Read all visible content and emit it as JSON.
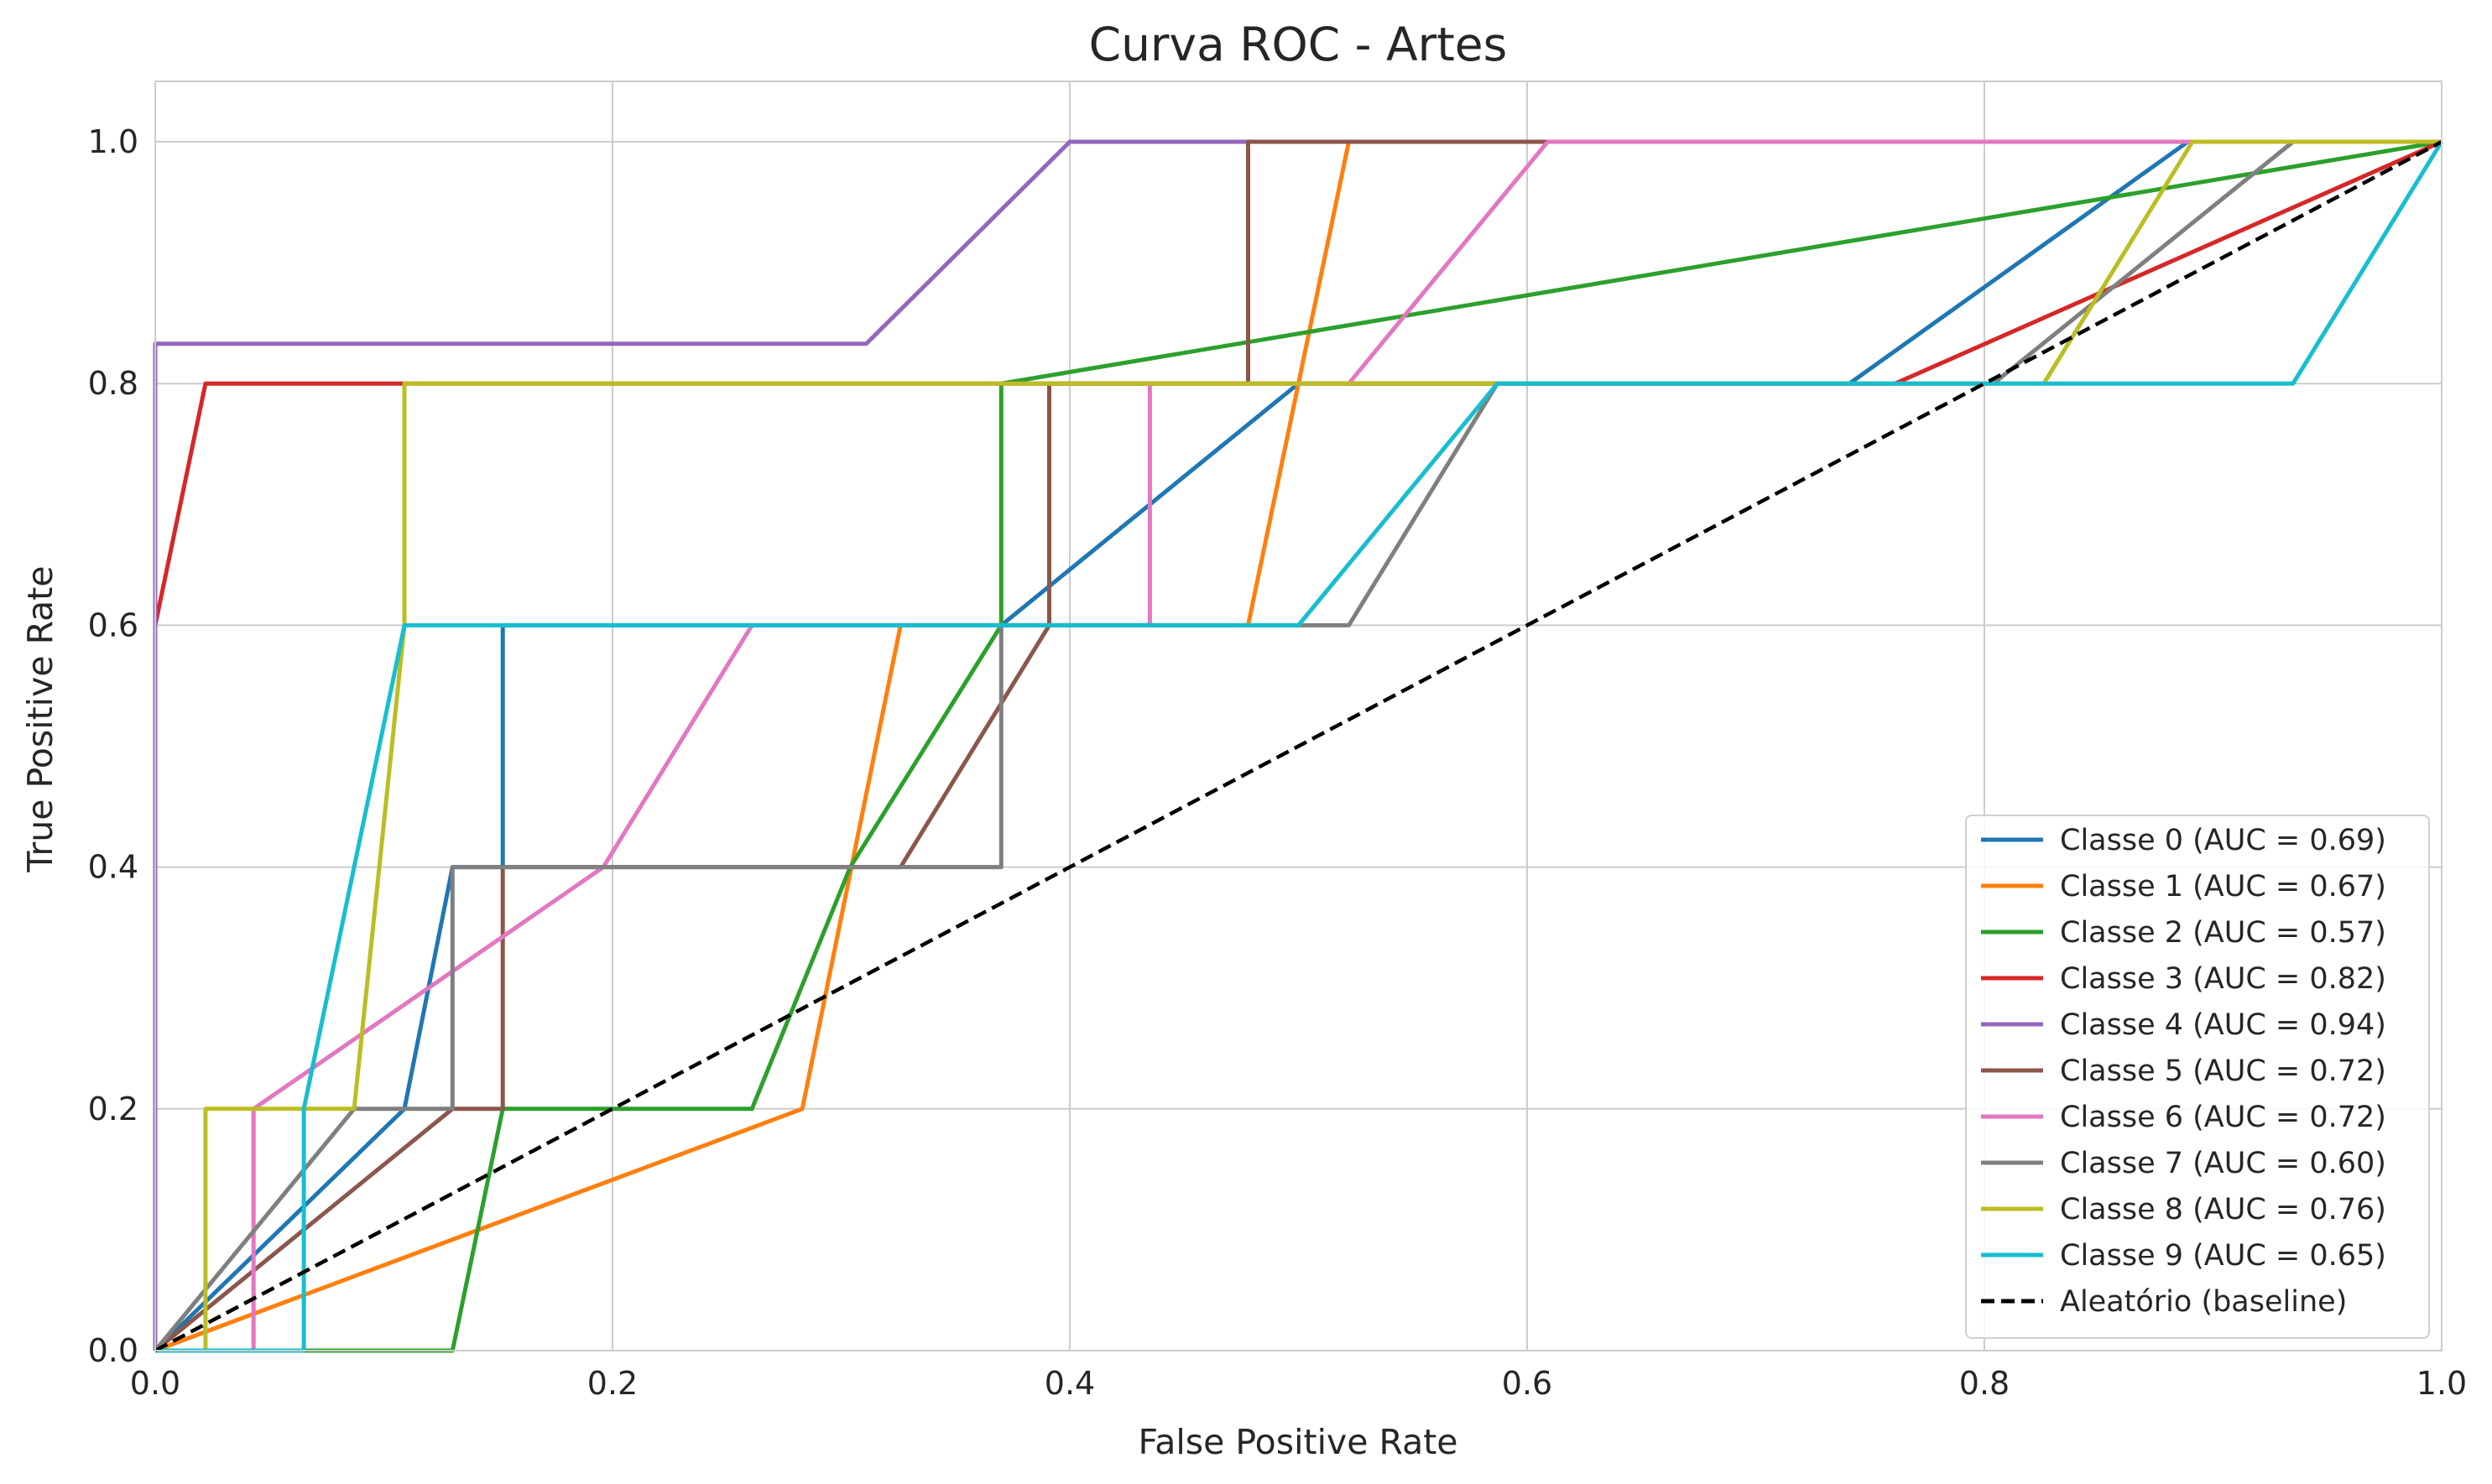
{
  "chart_data": {
    "type": "line",
    "title": "Curva ROC - Artes",
    "xlabel": "False Positive Rate",
    "ylabel": "True Positive Rate",
    "xlim": [
      0.0,
      1.0
    ],
    "ylim": [
      0.0,
      1.05
    ],
    "xticks": [
      "0.0",
      "0.2",
      "0.4",
      "0.6",
      "0.8",
      "1.0"
    ],
    "yticks": [
      "0.0",
      "0.2",
      "0.4",
      "0.6",
      "0.8",
      "1.0"
    ],
    "grid": true,
    "legend_position": "lower-right",
    "series": [
      {
        "name": "Classe 0 (AUC = 0.69)",
        "color": "#1f77b4",
        "x": [
          0,
          0.109,
          0.13,
          0.13,
          0.152,
          0.152,
          0.37,
          0.37,
          0.5,
          0.741,
          0.889,
          1.0
        ],
        "y": [
          0,
          0.2,
          0.4,
          0.4,
          0.4,
          0.6,
          0.6,
          0.6,
          0.8,
          0.8,
          1.0,
          1.0
        ]
      },
      {
        "name": "Classe 1 (AUC = 0.67)",
        "color": "#ff7f0e",
        "x": [
          0,
          0.283,
          0.326,
          0.326,
          0.478,
          0.522,
          1.0
        ],
        "y": [
          0,
          0.2,
          0.6,
          0.6,
          0.6,
          1.0,
          1.0
        ]
      },
      {
        "name": "Classe 2 (AUC = 0.57)",
        "color": "#2ca02c",
        "x": [
          0,
          0.13,
          0.152,
          0.261,
          0.304,
          0.37,
          0.37,
          1.0
        ],
        "y": [
          0,
          0,
          0.2,
          0.2,
          0.4,
          0.6,
          0.8,
          1.0
        ]
      },
      {
        "name": "Classe 3 (AUC = 0.82)",
        "color": "#d62728",
        "x": [
          0,
          0.022,
          0.107,
          0.761,
          1.0
        ],
        "y": [
          0.6,
          0.8,
          0.8,
          0.8,
          1.0
        ]
      },
      {
        "name": "Classe 4 (AUC = 0.94)",
        "color": "#9467bd",
        "x": [
          0,
          0,
          0.311,
          0.4,
          1.0
        ],
        "y": [
          0,
          0.833,
          0.833,
          1.0,
          1.0
        ]
      },
      {
        "name": "Classe 5 (AUC = 0.72)",
        "color": "#8c564b",
        "x": [
          0,
          0.13,
          0.152,
          0.152,
          0.326,
          0.391,
          0.391,
          0.478,
          0.478,
          0.609,
          1.0
        ],
        "y": [
          0,
          0.2,
          0.2,
          0.4,
          0.4,
          0.6,
          0.8,
          0.8,
          1.0,
          1.0,
          1.0
        ]
      },
      {
        "name": "Classe 6 (AUC = 0.72)",
        "color": "#e377c2",
        "x": [
          0,
          0.043,
          0.043,
          0.196,
          0.261,
          0.435,
          0.435,
          0.522,
          0.609,
          1.0
        ],
        "y": [
          0,
          0,
          0.2,
          0.4,
          0.6,
          0.6,
          0.8,
          0.8,
          1.0,
          1.0
        ]
      },
      {
        "name": "Classe 7 (AUC = 0.60)",
        "color": "#7f7f7f",
        "x": [
          0,
          0.087,
          0.13,
          0.13,
          0.37,
          0.37,
          0.522,
          0.587,
          0.804,
          0.935,
          1.0
        ],
        "y": [
          0,
          0.2,
          0.2,
          0.4,
          0.4,
          0.6,
          0.6,
          0.8,
          0.8,
          1.0,
          1.0
        ]
      },
      {
        "name": "Classe 8 (AUC = 0.76)",
        "color": "#bcbd22",
        "x": [
          0,
          0.022,
          0.022,
          0.087,
          0.109,
          0.109,
          0.826,
          0.891,
          1.0
        ],
        "y": [
          0,
          0,
          0.2,
          0.2,
          0.6,
          0.8,
          0.8,
          1.0,
          1.0
        ]
      },
      {
        "name": "Classe 9 (AUC = 0.65)",
        "color": "#17becf",
        "x": [
          0,
          0.065,
          0.065,
          0.109,
          0.5,
          0.587,
          0.935,
          1.0
        ],
        "y": [
          0,
          0,
          0.2,
          0.6,
          0.6,
          0.8,
          0.8,
          1.0
        ]
      }
    ],
    "baseline": {
      "name": "Aleatório (baseline)",
      "color": "#000000",
      "x": [
        0,
        1
      ],
      "y": [
        0,
        1
      ]
    }
  }
}
